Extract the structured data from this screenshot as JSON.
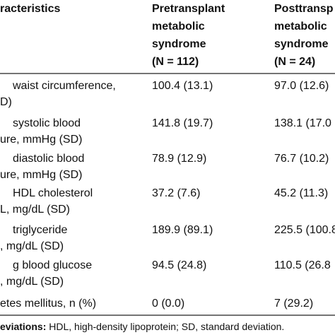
{
  "table": {
    "header": {
      "col0": "racteristics",
      "col1": [
        "Pretransplant",
        "metabolic",
        "syndrome",
        "(N = 112)"
      ],
      "col2": [
        "Posttransp",
        "metabolic",
        "syndrome",
        "(N = 24)"
      ]
    },
    "rows": [
      {
        "label": [
          "waist circumference,",
          "D)"
        ],
        "c1": "100.4 (13.1)",
        "c2": "97.0 (12.6)"
      },
      {
        "label": [
          "systolic blood",
          "ure, mmHg (SD)"
        ],
        "c1": "141.8 (19.7)",
        "c2": "138.1 (17.0"
      },
      {
        "label": [
          "diastolic blood",
          "ure, mmHg (SD)"
        ],
        "c1": "78.9 (12.9)",
        "c2": "76.7 (10.2)"
      },
      {
        "label": [
          "HDL cholesterol",
          "L, mg/dL (SD)"
        ],
        "c1": "37.2 (7.6)",
        "c2": "45.2 (11.3)"
      },
      {
        "label": [
          "triglyceride",
          ", mg/dL (SD)"
        ],
        "c1": "189.9 (89.1)",
        "c2": "225.5 (100.8"
      },
      {
        "label": [
          "g blood glucose",
          ", mg/dL (SD)"
        ],
        "c1": "94.5 (24.8)",
        "c2": "110.5 (26.8"
      },
      {
        "label": [
          "etes mellitus, n (%)"
        ],
        "c1": "0 (0.0)",
        "c2": "7 (29.2)"
      }
    ],
    "footer": {
      "lead": "eviations:",
      "text": " HDL, high-density lipoprotein; SD, standard deviation."
    }
  }
}
